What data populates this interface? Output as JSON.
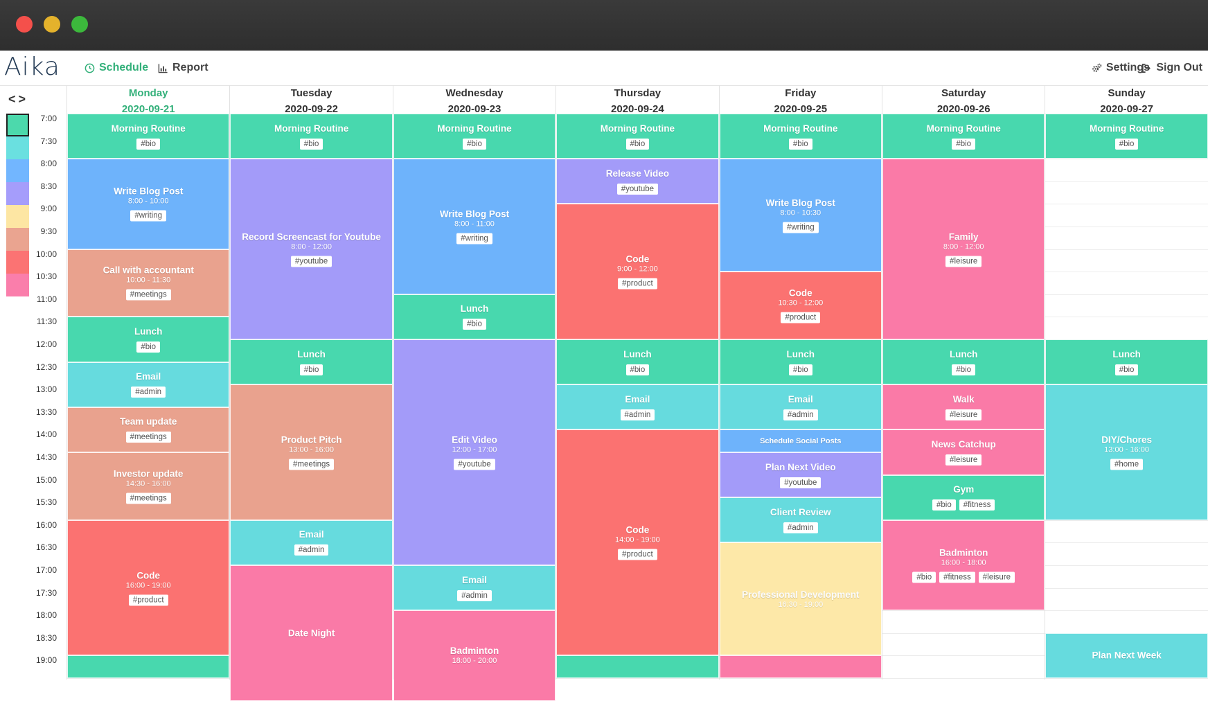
{
  "app": {
    "logo": "Aika"
  },
  "nav": {
    "schedule": "Schedule",
    "report": "Report",
    "settings": "Settings",
    "signout": "Sign Out"
  },
  "palette": [
    "#4cd9ac",
    "#6ae0e0",
    "#72b6ff",
    "#a59dfb",
    "#fde6a3",
    "#eaa490",
    "#fb7373",
    "#fa7eab"
  ],
  "colors": {
    "bio": "#48d8ae",
    "admin": "#66dbde",
    "writing": "#6eb3fb",
    "youtube": "#a39bf9",
    "dev": "#fde8a8",
    "meetings": "#e9a28e",
    "product": "#fb7271",
    "leisure": "#fa7aa7",
    "accent": "#33b07a"
  },
  "times": [
    "7:00",
    "7:30",
    "8:00",
    "8:30",
    "9:00",
    "9:30",
    "10:00",
    "10:30",
    "11:00",
    "11:30",
    "12:00",
    "12:30",
    "13:00",
    "13:30",
    "14:00",
    "14:30",
    "15:00",
    "15:30",
    "16:00",
    "16:30",
    "17:00",
    "17:30",
    "18:00",
    "18:30",
    "19:00"
  ],
  "days": [
    {
      "name": "Monday",
      "date": "2020-09-21",
      "today": true,
      "events": [
        {
          "title": "Morning Routine",
          "start": 7.0,
          "end": 8.0,
          "color": "bio",
          "tags": [
            "#bio"
          ]
        },
        {
          "title": "Write Blog Post",
          "time": "8:00 - 10:00",
          "start": 8.0,
          "end": 10.0,
          "color": "writing",
          "tags": [
            "#writing"
          ]
        },
        {
          "title": "Call with accountant",
          "time": "10:00 - 11:30",
          "start": 10.0,
          "end": 11.5,
          "color": "meetings",
          "tags": [
            "#meetings"
          ]
        },
        {
          "title": "Lunch",
          "start": 11.5,
          "end": 12.5,
          "color": "bio",
          "tags": [
            "#bio"
          ]
        },
        {
          "title": "Email",
          "start": 12.5,
          "end": 13.5,
          "color": "admin",
          "tags": [
            "#admin"
          ]
        },
        {
          "title": "Team update",
          "start": 13.5,
          "end": 14.5,
          "color": "meetings",
          "tags": [
            "#meetings"
          ]
        },
        {
          "title": "Investor update",
          "time": "14:30 - 16:00",
          "start": 14.5,
          "end": 16.0,
          "color": "meetings",
          "tags": [
            "#meetings"
          ]
        },
        {
          "title": "Code",
          "time": "16:00 - 19:00",
          "start": 16.0,
          "end": 19.0,
          "color": "product",
          "tags": [
            "#product"
          ]
        },
        {
          "title": "",
          "start": 19.0,
          "end": 19.5,
          "color": "bio",
          "tags": []
        }
      ]
    },
    {
      "name": "Tuesday",
      "date": "2020-09-22",
      "events": [
        {
          "title": "Morning Routine",
          "start": 7.0,
          "end": 8.0,
          "color": "bio",
          "tags": [
            "#bio"
          ]
        },
        {
          "title": "Record Screencast for Youtube",
          "time": "8:00 - 12:00",
          "start": 8.0,
          "end": 12.0,
          "color": "youtube",
          "tags": [
            "#youtube"
          ]
        },
        {
          "title": "Lunch",
          "start": 12.0,
          "end": 13.0,
          "color": "bio",
          "tags": [
            "#bio"
          ]
        },
        {
          "title": "Product Pitch",
          "time": "13:00 - 16:00",
          "start": 13.0,
          "end": 16.0,
          "color": "meetings",
          "tags": [
            "#meetings"
          ]
        },
        {
          "title": "Email",
          "start": 16.0,
          "end": 17.0,
          "color": "admin",
          "tags": [
            "#admin"
          ]
        },
        {
          "title": "Date Night",
          "start": 17.0,
          "end": 20.0,
          "color": "leisure",
          "tags": []
        }
      ]
    },
    {
      "name": "Wednesday",
      "date": "2020-09-23",
      "events": [
        {
          "title": "Morning Routine",
          "start": 7.0,
          "end": 8.0,
          "color": "bio",
          "tags": [
            "#bio"
          ]
        },
        {
          "title": "Write Blog Post",
          "time": "8:00 - 11:00",
          "start": 8.0,
          "end": 11.0,
          "color": "writing",
          "tags": [
            "#writing"
          ]
        },
        {
          "title": "Lunch",
          "start": 11.0,
          "end": 12.0,
          "color": "bio",
          "tags": [
            "#bio"
          ]
        },
        {
          "title": "Edit Video",
          "time": "12:00 - 17:00",
          "start": 12.0,
          "end": 17.0,
          "color": "youtube",
          "tags": [
            "#youtube"
          ]
        },
        {
          "title": "Email",
          "start": 17.0,
          "end": 18.0,
          "color": "admin",
          "tags": [
            "#admin"
          ]
        },
        {
          "title": "Badminton",
          "time": "18:00 - 20:00",
          "start": 18.0,
          "end": 20.0,
          "color": "leisure",
          "tags": []
        }
      ]
    },
    {
      "name": "Thursday",
      "date": "2020-09-24",
      "events": [
        {
          "title": "Morning Routine",
          "start": 7.0,
          "end": 8.0,
          "color": "bio",
          "tags": [
            "#bio"
          ]
        },
        {
          "title": "Release Video",
          "start": 8.0,
          "end": 9.0,
          "color": "youtube",
          "tags": [
            "#youtube"
          ]
        },
        {
          "title": "Code",
          "time": "9:00 - 12:00",
          "start": 9.0,
          "end": 12.0,
          "color": "product",
          "tags": [
            "#product"
          ]
        },
        {
          "title": "Lunch",
          "start": 12.0,
          "end": 13.0,
          "color": "bio",
          "tags": [
            "#bio"
          ]
        },
        {
          "title": "Email",
          "start": 13.0,
          "end": 14.0,
          "color": "admin",
          "tags": [
            "#admin"
          ]
        },
        {
          "title": "Code",
          "time": "14:00 - 19:00",
          "start": 14.0,
          "end": 19.0,
          "color": "product",
          "tags": [
            "#product"
          ]
        },
        {
          "title": "",
          "start": 19.0,
          "end": 19.5,
          "color": "bio",
          "tags": []
        }
      ]
    },
    {
      "name": "Friday",
      "date": "2020-09-25",
      "events": [
        {
          "title": "Morning Routine",
          "start": 7.0,
          "end": 8.0,
          "color": "bio",
          "tags": [
            "#bio"
          ]
        },
        {
          "title": "Write Blog Post",
          "time": "8:00 - 10:30",
          "start": 8.0,
          "end": 10.5,
          "color": "writing",
          "tags": [
            "#writing"
          ]
        },
        {
          "title": "Code",
          "time": "10:30 - 12:00",
          "start": 10.5,
          "end": 12.0,
          "color": "product",
          "tags": [
            "#product"
          ]
        },
        {
          "title": "Lunch",
          "start": 12.0,
          "end": 13.0,
          "color": "bio",
          "tags": [
            "#bio"
          ]
        },
        {
          "title": "Email",
          "start": 13.0,
          "end": 14.0,
          "color": "admin",
          "tags": [
            "#admin"
          ]
        },
        {
          "title": "Schedule Social Posts",
          "start": 14.0,
          "end": 14.5,
          "color": "writing",
          "tags": [],
          "small": true
        },
        {
          "title": "Plan Next Video",
          "start": 14.5,
          "end": 15.5,
          "color": "youtube",
          "tags": [
            "#youtube"
          ]
        },
        {
          "title": "Client Review",
          "start": 15.5,
          "end": 16.5,
          "color": "admin",
          "tags": [
            "#admin"
          ]
        },
        {
          "title": "Professional Development",
          "time": "16:30 - 19:00",
          "start": 16.5,
          "end": 19.0,
          "color": "dev",
          "tags": []
        },
        {
          "title": "",
          "start": 19.0,
          "end": 19.5,
          "color": "leisure",
          "tags": []
        }
      ]
    },
    {
      "name": "Saturday",
      "date": "2020-09-26",
      "events": [
        {
          "title": "Morning Routine",
          "start": 7.0,
          "end": 8.0,
          "color": "bio",
          "tags": [
            "#bio"
          ]
        },
        {
          "title": "Family",
          "time": "8:00 - 12:00",
          "start": 8.0,
          "end": 12.0,
          "color": "leisure",
          "tags": [
            "#leisure"
          ]
        },
        {
          "title": "Lunch",
          "start": 12.0,
          "end": 13.0,
          "color": "bio",
          "tags": [
            "#bio"
          ]
        },
        {
          "title": "Walk",
          "start": 13.0,
          "end": 14.0,
          "color": "leisure",
          "tags": [
            "#leisure"
          ]
        },
        {
          "title": "News Catchup",
          "start": 14.0,
          "end": 15.0,
          "color": "leisure",
          "tags": [
            "#leisure"
          ]
        },
        {
          "title": "Gym",
          "start": 15.0,
          "end": 16.0,
          "color": "bio",
          "tags": [
            "#bio",
            "#fitness"
          ]
        },
        {
          "title": "Badminton",
          "time": "16:00 - 18:00",
          "start": 16.0,
          "end": 18.0,
          "color": "leisure",
          "tags": [
            "#bio",
            "#fitness",
            "#leisure"
          ]
        }
      ]
    },
    {
      "name": "Sunday",
      "date": "2020-09-27",
      "events": [
        {
          "title": "Morning Routine",
          "start": 7.0,
          "end": 8.0,
          "color": "bio",
          "tags": [
            "#bio"
          ]
        },
        {
          "title": "Lunch",
          "start": 12.0,
          "end": 13.0,
          "color": "bio",
          "tags": [
            "#bio"
          ]
        },
        {
          "title": "DIY/Chores",
          "time": "13:00 - 16:00",
          "start": 13.0,
          "end": 16.0,
          "color": "admin",
          "tags": [
            "#home"
          ]
        },
        {
          "title": "Plan Next Week",
          "start": 18.5,
          "end": 19.5,
          "color": "admin",
          "tags": []
        }
      ]
    }
  ]
}
